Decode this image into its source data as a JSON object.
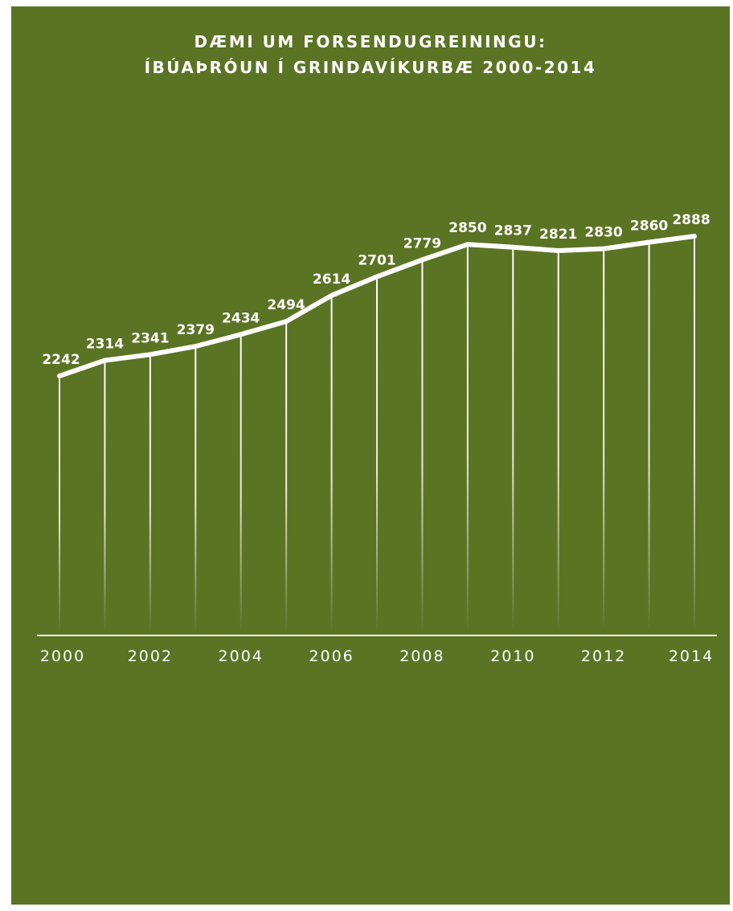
{
  "colors": {
    "background": "#5a7424",
    "line": "#ffffff",
    "text": "#ffffff"
  },
  "chart_data": {
    "type": "line",
    "title": [
      "DÆMI UM FORSENDUGREININGU:",
      "ÍBÚAÞRÓUN Í GRINDAVÍKURBÆ 2000-2014"
    ],
    "xlabel": "",
    "ylabel": "",
    "x": [
      2000,
      2001,
      2002,
      2003,
      2004,
      2005,
      2006,
      2007,
      2008,
      2009,
      2010,
      2011,
      2012,
      2013,
      2014
    ],
    "values": [
      2242,
      2314,
      2341,
      2379,
      2434,
      2494,
      2614,
      2701,
      2779,
      2850,
      2837,
      2821,
      2830,
      2860,
      2888
    ],
    "x_tick_labels": [
      "2000",
      "2002",
      "2004",
      "2006",
      "2008",
      "2010",
      "2012",
      "2014"
    ],
    "data_labels": true,
    "drop_lines": true,
    "grid": false,
    "legend": "none"
  }
}
